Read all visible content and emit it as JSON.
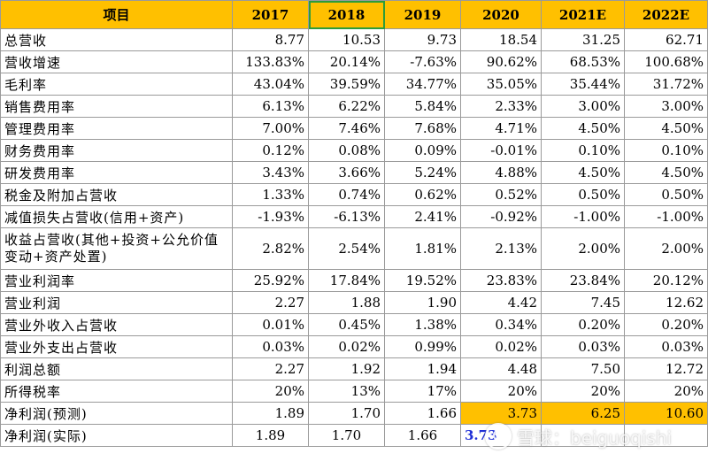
{
  "table": {
    "headers": [
      "项目",
      "2017",
      "2018",
      "2019",
      "2020",
      "2021E",
      "2022E"
    ],
    "rows": [
      {
        "label": "总营收",
        "values": [
          "8.77",
          "10.53",
          "9.73",
          "18.54",
          "31.25",
          "62.71"
        ]
      },
      {
        "label": "营收增速",
        "values": [
          "133.83%",
          "20.14%",
          "-7.63%",
          "90.62%",
          "68.53%",
          "100.68%"
        ]
      },
      {
        "label": "毛利率",
        "values": [
          "43.04%",
          "39.59%",
          "34.77%",
          "35.05%",
          "35.44%",
          "31.72%"
        ]
      },
      {
        "label": "销售费用率",
        "values": [
          "6.13%",
          "6.22%",
          "5.84%",
          "2.33%",
          "3.00%",
          "3.00%"
        ]
      },
      {
        "label": "管理费用率",
        "values": [
          "7.00%",
          "7.46%",
          "7.68%",
          "4.71%",
          "4.50%",
          "4.50%"
        ]
      },
      {
        "label": "财务费用率",
        "values": [
          "0.12%",
          "0.08%",
          "0.09%",
          "-0.01%",
          "0.10%",
          "0.10%"
        ]
      },
      {
        "label": "研发费用率",
        "values": [
          "3.43%",
          "3.66%",
          "5.24%",
          "4.88%",
          "4.50%",
          "4.50%"
        ]
      },
      {
        "label": "税金及附加占营收",
        "values": [
          "1.33%",
          "0.74%",
          "0.62%",
          "0.52%",
          "0.50%",
          "0.50%"
        ]
      },
      {
        "label": "减值损失占营收(信用+资产)",
        "values": [
          "-1.93%",
          "-6.13%",
          "2.41%",
          "-0.92%",
          "-1.00%",
          "-1.00%"
        ]
      },
      {
        "label": "收益占营收(其他+投资+公允价值变动+资产处置)",
        "values": [
          "2.82%",
          "2.54%",
          "1.81%",
          "2.13%",
          "2.00%",
          "2.00%"
        ]
      },
      {
        "label": "营业利润率",
        "values": [
          "25.92%",
          "17.84%",
          "19.52%",
          "23.83%",
          "23.84%",
          "20.12%"
        ]
      },
      {
        "label": "营业利润",
        "values": [
          "2.27",
          "1.88",
          "1.90",
          "4.42",
          "7.45",
          "12.62"
        ]
      },
      {
        "label": "营业外收入占营收",
        "values": [
          "0.01%",
          "0.45%",
          "1.38%",
          "0.34%",
          "0.20%",
          "0.20%"
        ]
      },
      {
        "label": "营业外支出占营收",
        "values": [
          "0.03%",
          "0.02%",
          "0.99%",
          "0.02%",
          "0.03%",
          "0.03%"
        ]
      },
      {
        "label": "利润总额",
        "values": [
          "2.27",
          "1.92",
          "1.94",
          "4.48",
          "7.50",
          "12.72"
        ]
      },
      {
        "label": "所得税率",
        "values": [
          "20%",
          "13%",
          "17%",
          "20%",
          "20%",
          "20%"
        ]
      },
      {
        "label": "净利润(预测)",
        "values": [
          "1.89",
          "1.70",
          "1.66",
          "3.73",
          "6.25",
          "10.60"
        ]
      },
      {
        "label": "净利润(实际)",
        "values": [
          "1.89",
          "1.70",
          "1.66",
          "3.73",
          "",
          ""
        ]
      }
    ]
  },
  "colors": {
    "header_bg": "#ffc000",
    "highlight_bg": "#ffc000",
    "actual_value_color": "#1f2fd6",
    "selected_cell_border": "#2e9c3a"
  },
  "watermark": {
    "text": "雪球：beiguoqishi",
    "icon": "xueqiu-logo-icon"
  }
}
